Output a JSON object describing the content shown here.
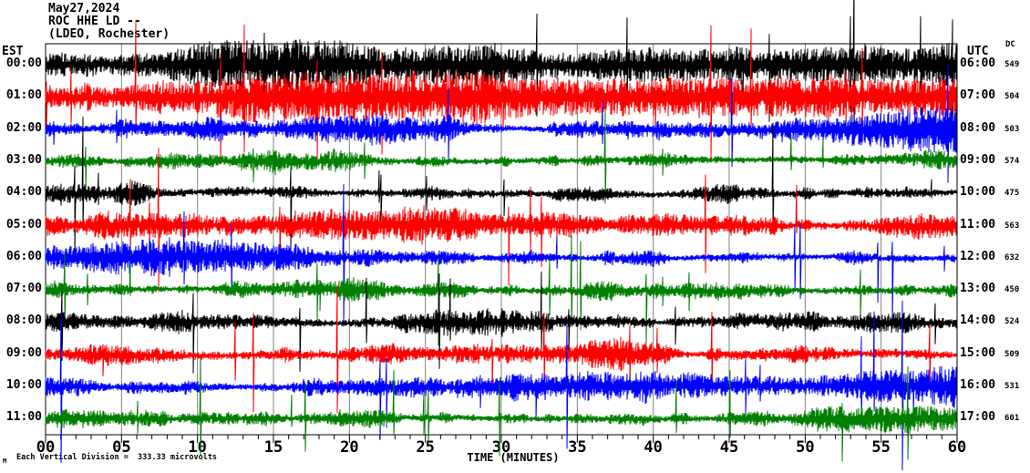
{
  "title": {
    "date": "May27,2024",
    "station": "ROC HHE LD --",
    "network": "(LDEO, Rochester)"
  },
  "axes": {
    "left_tz_label": "EST",
    "right_tz_label": "UTC",
    "dc_column_label": "DC",
    "x_axis_title": "TIME (MINUTES)",
    "x_ticks": [
      "00",
      "05",
      "10",
      "15",
      "20",
      "25",
      "30",
      "35",
      "40",
      "45",
      "50",
      "55",
      "60"
    ],
    "x_minor_ticks_per_major": 5
  },
  "footer": {
    "scale_note": "Each Vertical Division =  333.33 microvolts",
    "corner_mark": "M"
  },
  "chart_data": {
    "type": "line",
    "subtype": "helicorder-seismogram",
    "x_range_minutes": [
      0,
      60
    ],
    "minutes_per_row": 60,
    "vertical_division_microvolts": 333.33,
    "grid": "vertical-5min",
    "rows": [
      {
        "est": "00:00",
        "utc": "06:00",
        "dc": 549,
        "color": "#000000"
      },
      {
        "est": "01:00",
        "utc": "07:00",
        "dc": 504,
        "color": "#ff0000"
      },
      {
        "est": "02:00",
        "utc": "08:00",
        "dc": 503,
        "color": "#0000ff"
      },
      {
        "est": "03:00",
        "utc": "09:00",
        "dc": 574,
        "color": "#007f00"
      },
      {
        "est": "04:00",
        "utc": "10:00",
        "dc": 475,
        "color": "#000000"
      },
      {
        "est": "05:00",
        "utc": "11:00",
        "dc": 563,
        "color": "#ff0000"
      },
      {
        "est": "06:00",
        "utc": "12:00",
        "dc": 632,
        "color": "#0000ff"
      },
      {
        "est": "07:00",
        "utc": "13:00",
        "dc": 450,
        "color": "#007f00"
      },
      {
        "est": "08:00",
        "utc": "14:00",
        "dc": 524,
        "color": "#000000"
      },
      {
        "est": "09:00",
        "utc": "15:00",
        "dc": 509,
        "color": "#ff0000"
      },
      {
        "est": "10:00",
        "utc": "16:00",
        "dc": 531,
        "color": "#0000ff"
      },
      {
        "est": "11:00",
        "utc": "17:00",
        "dc": 601,
        "color": "#007f00"
      }
    ],
    "color_cycle": [
      "#000000",
      "#ff0000",
      "#0000ff",
      "#007f00"
    ]
  },
  "style": {
    "background": "#ffffff",
    "frame_color": "#000000",
    "grid_color": "#808080"
  },
  "waveform": {
    "seed": 20240527,
    "base_amplitude": 7,
    "spike_probability": 0.01,
    "spike_amplitude": 34,
    "max_excursion": 95
  }
}
